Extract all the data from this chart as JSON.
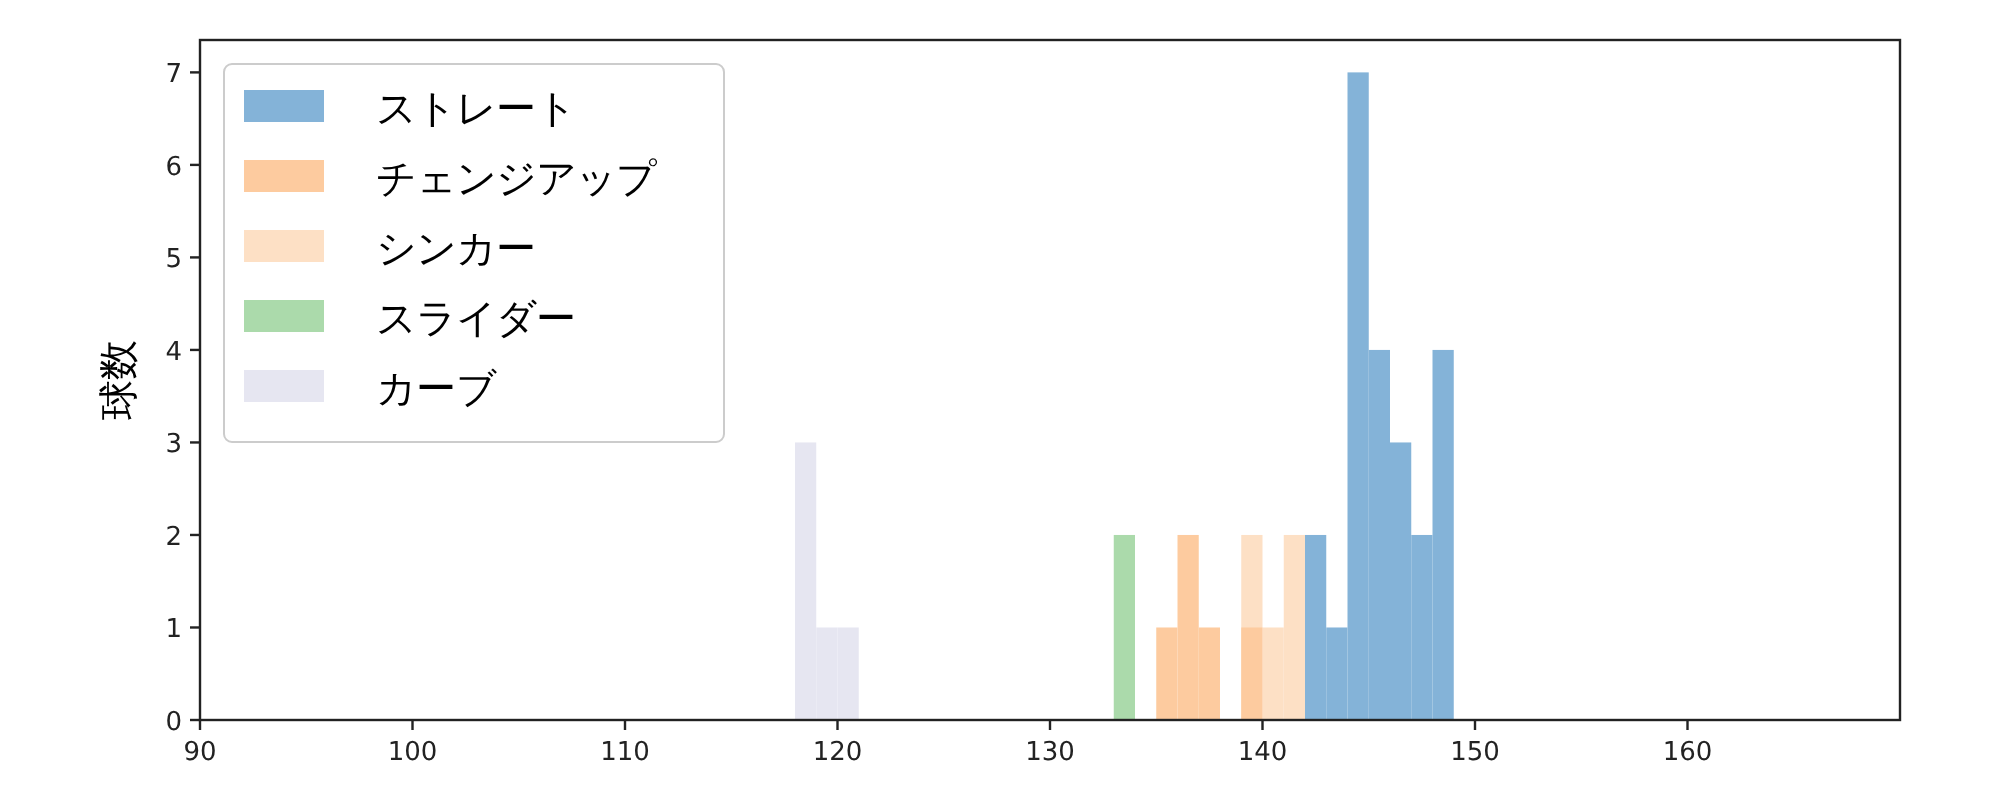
{
  "chart_data": {
    "type": "histogram",
    "ylabel": "球数",
    "xlim": [
      90,
      170
    ],
    "ylim": [
      0,
      7.35
    ],
    "xticks": [
      90,
      100,
      110,
      120,
      130,
      140,
      150,
      160
    ],
    "yticks": [
      0,
      1,
      2,
      3,
      4,
      5,
      6,
      7
    ],
    "legend": "top left",
    "bins": [
      118,
      119,
      120,
      121,
      133,
      134,
      135,
      136,
      137,
      138,
      139,
      140,
      141,
      142,
      143,
      144,
      145,
      146,
      147,
      148,
      149
    ],
    "series": [
      {
        "name": "ストレート",
        "color": "#84b3d8",
        "values": [
          0,
          0,
          0,
          0,
          0,
          0,
          0,
          0,
          0,
          0,
          0,
          0,
          0,
          2,
          1,
          7,
          4,
          3,
          2,
          4
        ]
      },
      {
        "name": "チェンジアップ",
        "color": "#fdcb9f",
        "values": [
          0,
          0,
          0,
          0,
          0,
          0,
          1,
          2,
          1,
          0,
          1,
          0,
          0,
          0,
          0,
          0,
          0,
          0,
          0,
          0
        ]
      },
      {
        "name": "シンカー",
        "color": "#fde0c5",
        "values": [
          0,
          0,
          0,
          0,
          0,
          0,
          0,
          0,
          0,
          0,
          2,
          1,
          2,
          0,
          0,
          0,
          0,
          0,
          0,
          0
        ]
      },
      {
        "name": "スライダー",
        "color": "#abdaab",
        "values": [
          0,
          0,
          0,
          0,
          2,
          0,
          0,
          0,
          0,
          0,
          0,
          0,
          0,
          0,
          0,
          0,
          0,
          0,
          0,
          0
        ]
      },
      {
        "name": "カーブ",
        "color": "#e6e6f1",
        "values": [
          3,
          1,
          1,
          0,
          0,
          0,
          0,
          0,
          0,
          0,
          0,
          0,
          0,
          0,
          0,
          0,
          0,
          0,
          0,
          0
        ]
      }
    ]
  }
}
